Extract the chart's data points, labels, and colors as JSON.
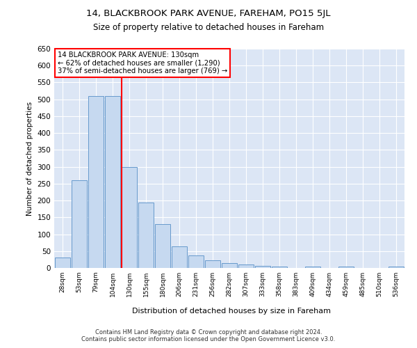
{
  "title1": "14, BLACKBROOK PARK AVENUE, FAREHAM, PO15 5JL",
  "title2": "Size of property relative to detached houses in Fareham",
  "xlabel": "Distribution of detached houses by size in Fareham",
  "ylabel": "Number of detached properties",
  "categories": [
    "28sqm",
    "53sqm",
    "79sqm",
    "104sqm",
    "130sqm",
    "155sqm",
    "180sqm",
    "206sqm",
    "231sqm",
    "256sqm",
    "282sqm",
    "307sqm",
    "333sqm",
    "358sqm",
    "383sqm",
    "409sqm",
    "434sqm",
    "459sqm",
    "485sqm",
    "510sqm",
    "536sqm"
  ],
  "values": [
    30,
    260,
    510,
    510,
    300,
    195,
    130,
    65,
    38,
    22,
    15,
    10,
    7,
    5,
    1,
    5,
    1,
    5,
    1,
    1,
    5
  ],
  "bar_color": "#c6d9f0",
  "bar_edge_color": "#6699cc",
  "red_line_index": 4,
  "annotation_text": "14 BLACKBROOK PARK AVENUE: 130sqm\n← 62% of detached houses are smaller (1,290)\n37% of semi-detached houses are larger (769) →",
  "red_line_color": "red",
  "ylim_max": 650,
  "yticks": [
    0,
    50,
    100,
    150,
    200,
    250,
    300,
    350,
    400,
    450,
    500,
    550,
    600,
    650
  ],
  "background_color": "#dce6f5",
  "grid_color": "#ffffff",
  "footer1": "Contains HM Land Registry data © Crown copyright and database right 2024.",
  "footer2": "Contains public sector information licensed under the Open Government Licence v3.0."
}
